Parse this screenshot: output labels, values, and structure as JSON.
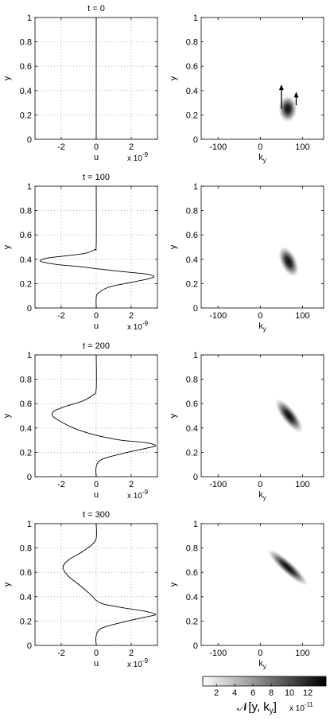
{
  "chart_data": [
    {
      "type": "line",
      "title": "t = 0",
      "xlabel": "u",
      "ylabel": "y",
      "xlim": [
        -3.5,
        3.5
      ],
      "ylim": [
        0,
        1
      ],
      "x_exponent": "x 10",
      "x_exponent_power": "-9",
      "xticks": [
        "-2",
        "0",
        "2"
      ],
      "yticks": [
        "0",
        "0.2",
        "0.4",
        "0.6",
        "0.8",
        "1"
      ],
      "grid": true,
      "series": [
        {
          "points": [
            [
              0,
              0
            ],
            [
              0,
              1
            ]
          ]
        }
      ]
    },
    {
      "type": "heatmap",
      "title": "",
      "xlabel": "k",
      "xlabel_sub": "y",
      "ylabel": "y",
      "xlim": [
        -140,
        150
      ],
      "ylim": [
        0,
        1
      ],
      "xticks": [
        "-100",
        "0",
        "100"
      ],
      "yticks": [
        "0",
        "0.2",
        "0.4",
        "0.6",
        "0.8",
        "1"
      ],
      "grid": false,
      "blob": {
        "ky": 65,
        "y": 0.25,
        "sigma_ky": 9,
        "sigma_y": 0.045,
        "angle": 0
      },
      "arrows": [
        {
          "ky": 50,
          "y_from": 0.25,
          "y_to": 0.45
        },
        {
          "ky": 85,
          "y_from": 0.28,
          "y_to": 0.39
        }
      ]
    },
    {
      "type": "line",
      "title": "t = 100",
      "xlabel": "u",
      "ylabel": "y",
      "xlim": [
        -3.5,
        3.5
      ],
      "ylim": [
        0,
        1
      ],
      "x_exponent": "x 10",
      "x_exponent_power": "-9",
      "xticks": [
        "-2",
        "0",
        "2"
      ],
      "yticks": [
        "0",
        "0.2",
        "0.4",
        "0.6",
        "0.8",
        "1"
      ],
      "grid": true,
      "series": [
        {
          "points": [
            [
              0,
              0
            ],
            [
              0,
              0.08
            ],
            [
              0.1,
              0.12
            ],
            [
              0.7,
              0.17
            ],
            [
              2,
              0.21
            ],
            [
              3,
              0.24
            ],
            [
              3.3,
              0.26
            ],
            [
              2.8,
              0.28
            ],
            [
              1.4,
              0.3
            ],
            [
              0.2,
              0.32
            ],
            [
              -1,
              0.34
            ],
            [
              -2.4,
              0.36
            ],
            [
              -3.2,
              0.385
            ],
            [
              -2.8,
              0.41
            ],
            [
              -1.6,
              0.43
            ],
            [
              -0.6,
              0.45
            ],
            [
              -0.1,
              0.48
            ],
            [
              0,
              0.52
            ],
            [
              0,
              1
            ]
          ]
        }
      ]
    },
    {
      "type": "heatmap",
      "title": "",
      "xlabel": "k",
      "xlabel_sub": "y",
      "ylabel": "y",
      "xlim": [
        -140,
        150
      ],
      "ylim": [
        0,
        1
      ],
      "xticks": [
        "-100",
        "0",
        "100"
      ],
      "yticks": [
        "0",
        "0.2",
        "0.4",
        "0.6",
        "0.8",
        "1"
      ],
      "grid": false,
      "blob": {
        "ky": 67,
        "y": 0.38,
        "sigma_ky": 8,
        "sigma_y": 0.055,
        "angle": -25
      },
      "arrows": []
    },
    {
      "type": "line",
      "title": "t = 200",
      "xlabel": "u",
      "ylabel": "y",
      "xlim": [
        -3.5,
        3.5
      ],
      "ylim": [
        0,
        1
      ],
      "x_exponent": "x 10",
      "x_exponent_power": "-9",
      "xticks": [
        "-2",
        "0",
        "2"
      ],
      "yticks": [
        "0",
        "0.2",
        "0.4",
        "0.6",
        "0.8",
        "1"
      ],
      "grid": true,
      "series": [
        {
          "points": [
            [
              0,
              0
            ],
            [
              0,
              0.08
            ],
            [
              0.3,
              0.14
            ],
            [
              1.5,
              0.19
            ],
            [
              2.9,
              0.235
            ],
            [
              3.4,
              0.255
            ],
            [
              2.8,
              0.28
            ],
            [
              1.4,
              0.3
            ],
            [
              0.3,
              0.33
            ],
            [
              -0.5,
              0.36
            ],
            [
              -1.3,
              0.4
            ],
            [
              -2,
              0.45
            ],
            [
              -2.5,
              0.5
            ],
            [
              -2.4,
              0.54
            ],
            [
              -1.7,
              0.58
            ],
            [
              -0.8,
              0.62
            ],
            [
              -0.2,
              0.67
            ],
            [
              0,
              0.72
            ],
            [
              0,
              1
            ]
          ]
        }
      ]
    },
    {
      "type": "heatmap",
      "title": "",
      "xlabel": "k",
      "xlabel_sub": "y",
      "ylabel": "y",
      "xlim": [
        -140,
        150
      ],
      "ylim": [
        0,
        1
      ],
      "xticks": [
        "-100",
        "0",
        "100"
      ],
      "yticks": [
        "0",
        "0.2",
        "0.4",
        "0.6",
        "0.8",
        "1"
      ],
      "grid": false,
      "blob": {
        "ky": 68,
        "y": 0.5,
        "sigma_ky": 7,
        "sigma_y": 0.07,
        "angle": -38
      },
      "arrows": []
    },
    {
      "type": "line",
      "title": "t = 300",
      "xlabel": "u",
      "ylabel": "y",
      "xlim": [
        -3.5,
        3.5
      ],
      "ylim": [
        0,
        1
      ],
      "x_exponent": "x 10",
      "x_exponent_power": "-9",
      "xticks": [
        "-2",
        "0",
        "2"
      ],
      "yticks": [
        "0",
        "0.2",
        "0.4",
        "0.6",
        "0.8",
        "1"
      ],
      "grid": true,
      "series": [
        {
          "points": [
            [
              0,
              0
            ],
            [
              0,
              0.08
            ],
            [
              0.3,
              0.14
            ],
            [
              1.5,
              0.19
            ],
            [
              2.9,
              0.235
            ],
            [
              3.4,
              0.255
            ],
            [
              2.8,
              0.28
            ],
            [
              1.5,
              0.31
            ],
            [
              0.4,
              0.34
            ],
            [
              0,
              0.37
            ],
            [
              -0.2,
              0.4
            ],
            [
              -0.5,
              0.44
            ],
            [
              -1,
              0.5
            ],
            [
              -1.6,
              0.57
            ],
            [
              -1.9,
              0.64
            ],
            [
              -1.6,
              0.7
            ],
            [
              -0.9,
              0.76
            ],
            [
              -0.3,
              0.82
            ],
            [
              0,
              0.88
            ],
            [
              0,
              1
            ]
          ]
        }
      ]
    },
    {
      "type": "heatmap",
      "title": "",
      "xlabel": "k",
      "xlabel_sub": "y",
      "ylabel": "y",
      "xlim": [
        -140,
        150
      ],
      "ylim": [
        0,
        1
      ],
      "xticks": [
        "-100",
        "0",
        "100"
      ],
      "yticks": [
        "0",
        "0.2",
        "0.4",
        "0.6",
        "0.8",
        "1"
      ],
      "grid": false,
      "blob": {
        "ky": 65,
        "y": 0.64,
        "sigma_ky": 6,
        "sigma_y": 0.09,
        "angle": -48
      },
      "arrows": []
    }
  ],
  "colorbar": {
    "ticks": [
      "2",
      "4",
      "6",
      "8",
      "10",
      "12"
    ],
    "tick_values": [
      2,
      4,
      6,
      8,
      10,
      12
    ],
    "range": [
      0.5,
      14
    ],
    "label": "𝒩[y, k",
    "label_sub": "y",
    "label_end": "]",
    "exponent": "x 10",
    "exponent_power": "-11"
  }
}
